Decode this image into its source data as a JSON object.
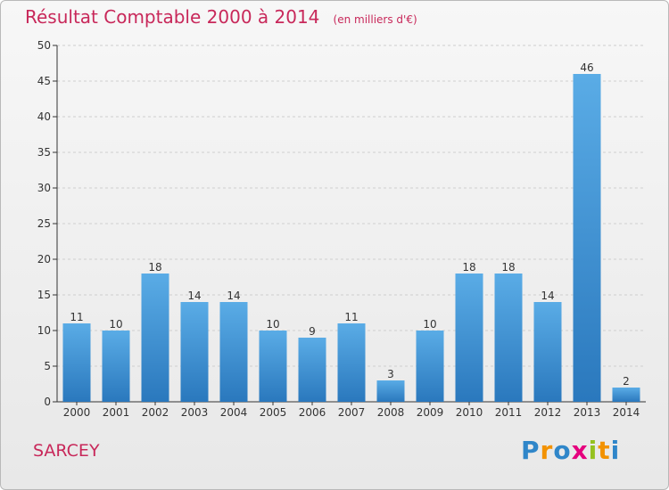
{
  "header": {
    "title": "Résultat Comptable 2000 à 2014",
    "subtitle": "(en milliers d'€)"
  },
  "footer": {
    "town": "SARCEY",
    "logo": [
      "P",
      "r",
      "o",
      "x",
      "i",
      "t",
      "i"
    ],
    "logo_colors": [
      "#2f86c9",
      "#f39200",
      "#2f86c9",
      "#e5007e",
      "#95c11f",
      "#f39200",
      "#2f86c9"
    ]
  },
  "chart_data": {
    "type": "bar",
    "title": "Résultat Comptable 2000 à 2014",
    "subtitle": "(en milliers d'€)",
    "categories": [
      "2000",
      "2001",
      "2002",
      "2003",
      "2004",
      "2005",
      "2006",
      "2007",
      "2008",
      "2009",
      "2010",
      "2011",
      "2012",
      "2013",
      "2014"
    ],
    "values": [
      11,
      10,
      18,
      14,
      14,
      10,
      9,
      11,
      3,
      10,
      18,
      18,
      14,
      46,
      2
    ],
    "ylim": [
      0,
      50
    ],
    "yticks": [
      0,
      5,
      10,
      15,
      20,
      25,
      30,
      35,
      40,
      45,
      50
    ],
    "grid": true,
    "bar_color_top": "#5aace6",
    "bar_color_bottom": "#2a78bd"
  }
}
